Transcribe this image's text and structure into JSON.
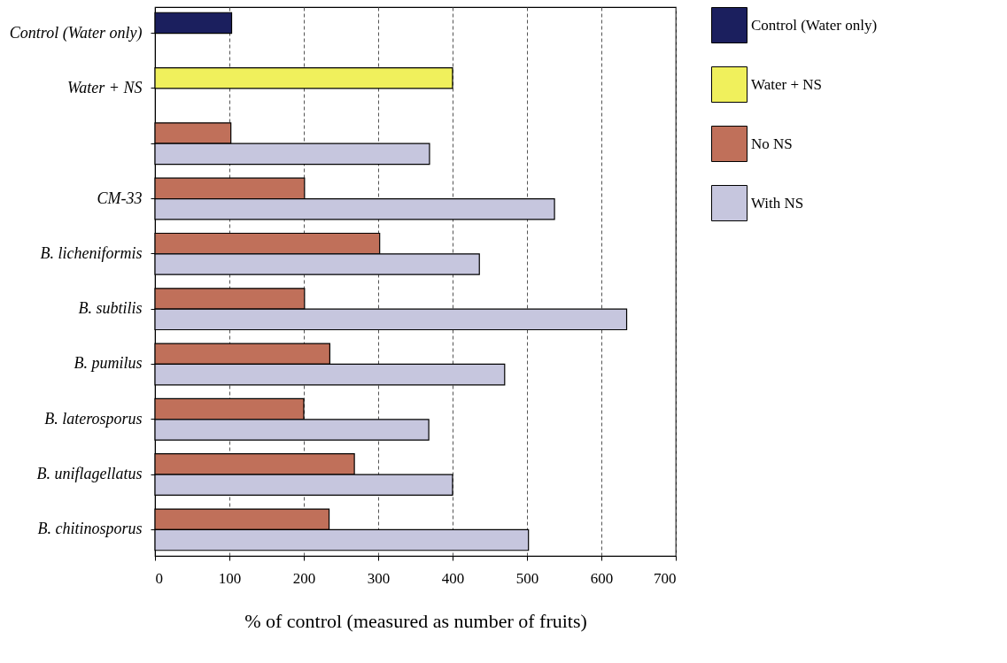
{
  "chart_data": {
    "type": "bar",
    "orientation": "horizontal",
    "xlabel": "% of control (measured as number of fruits)",
    "categories": [
      "Control (Water only)",
      "Water + NS",
      null,
      "CM-33",
      "B. licheniformis",
      "B. subtilis",
      "B. pumilus",
      "B. laterosporus",
      "B. uniflagellatus",
      "B. chitinosporus"
    ],
    "series": [
      {
        "name": "Control (Water only)",
        "color": "#1b1f5e",
        "values": [
          103,
          null,
          null,
          null,
          null,
          null,
          null,
          null,
          null,
          null
        ]
      },
      {
        "name": "Water + NS",
        "color": "#f0f05c",
        "values": [
          null,
          400,
          null,
          null,
          null,
          null,
          null,
          null,
          null,
          null
        ]
      },
      {
        "name": "No NS",
        "color": "#c0705a",
        "values": [
          null,
          null,
          102,
          201,
          302,
          201,
          235,
          200,
          268,
          234
        ]
      },
      {
        "name": "With NS",
        "color": "#c6c6de",
        "values": [
          null,
          null,
          369,
          537,
          436,
          634,
          470,
          368,
          400,
          502
        ]
      }
    ],
    "xlim": [
      0,
      700
    ],
    "xticks": [
      0,
      100,
      200,
      300,
      400,
      500,
      600,
      700
    ],
    "grid": "x",
    "legend": "right"
  }
}
